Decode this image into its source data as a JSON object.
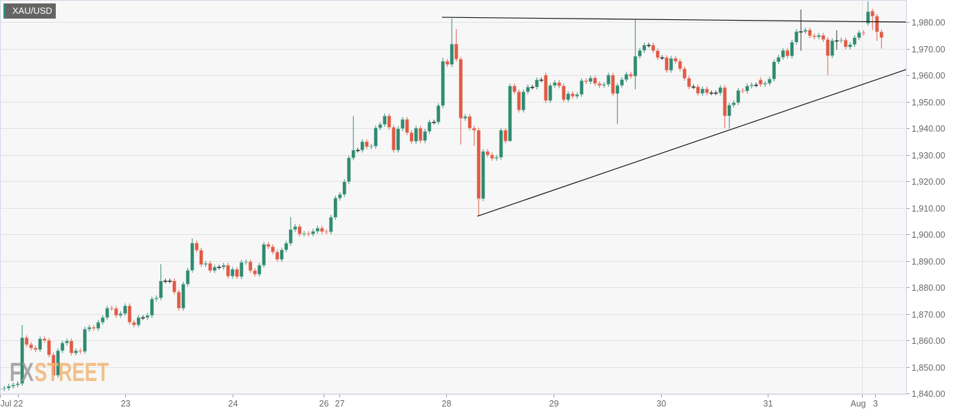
{
  "chart_data": {
    "type": "candlestick",
    "title": "XAU/USD",
    "watermark": [
      "FX",
      "STREET"
    ],
    "ylim": [
      1840,
      1980
    ],
    "y_ticks": [
      1840,
      1850,
      1860,
      1870,
      1880,
      1890,
      1900,
      1910,
      1920,
      1930,
      1940,
      1950,
      1960,
      1970,
      1980
    ],
    "y_tick_labels": [
      "1,840.00",
      "1,850.00",
      "1,860.00",
      "1,870.00",
      "1,880.00",
      "1,890.00",
      "1,900.00",
      "1,910.00",
      "1,920.00",
      "1,930.00",
      "1,940.00",
      "1,950.00",
      "1,960.00",
      "1,970.00",
      "1,980.00"
    ],
    "x_ticks": [
      {
        "index": 0.05,
        "label": "Jul"
      },
      {
        "index": 4.05,
        "label": "22"
      },
      {
        "index": 28.0,
        "label": "23"
      },
      {
        "index": 52.0,
        "label": "24"
      },
      {
        "index": 72.3,
        "label": "26"
      },
      {
        "index": 75.9,
        "label": "27"
      },
      {
        "index": 99.7,
        "label": "28"
      },
      {
        "index": 123.7,
        "label": "29"
      },
      {
        "index": 147.7,
        "label": "30"
      },
      {
        "index": 171.6,
        "label": "31"
      },
      {
        "index": 192.7,
        "label": "Aug"
      },
      {
        "index": 195.6,
        "label": "3"
      }
    ],
    "month_start_index": 192.7,
    "grid": true,
    "colors": {
      "up": "#2f8a72",
      "down": "#e05a45",
      "flat": "#333333"
    },
    "close": [
      1841.8,
      1842,
      1842.7,
      1843.2,
      1843.7,
      1861,
      1858.4,
      1857.1,
      1856.5,
      1860.6,
      1860,
      1854.5,
      1846.8,
      1856.1,
      1859,
      1859.8,
      1855.2,
      1856.1,
      1855.8,
      1864.2,
      1864.9,
      1864.5,
      1866.8,
      1868.6,
      1872.1,
      1872,
      1869.4,
      1870.1,
      1873,
      1866.8,
      1865.8,
      1868.6,
      1868.6,
      1869.4,
      1875.6,
      1876,
      1882.4,
      1882.4,
      1882.4,
      1878.2,
      1872.1,
      1881.2,
      1886.4,
      1896.7,
      1894,
      1888.6,
      1889,
      1886.3,
      1887.6,
      1887.6,
      1888.3,
      1884.2,
      1886.8,
      1884,
      1889.4,
      1889.6,
      1886.3,
      1884.9,
      1888.3,
      1896.2,
      1895.3,
      1893.3,
      1890.5,
      1894.1,
      1896.6,
      1901.8,
      1902.9,
      1900.1,
      1900.3,
      1900.1,
      1901.1,
      1902.3,
      1901,
      1900.9,
      1906.4,
      1913.6,
      1915,
      1919.8,
      1928.8,
      1931.7,
      1931.7,
      1934.9,
      1933,
      1933.2,
      1940.1,
      1941.4,
      1944.6,
      1940.3,
      1931.7,
      1939.8,
      1943.3,
      1938.3,
      1935,
      1940,
      1935.3,
      1938.8,
      1942.3,
      1942.3,
      1948.5,
      1965.2,
      1964,
      1971.7,
      1966,
      1943.7,
      1944.4,
      1940,
      1939.2,
      1913.4,
      1931.2,
      1929.9,
      1928.6,
      1929,
      1939.2,
      1935.1,
      1955.9,
      1953.7,
      1946.8,
      1953.7,
      1955.5,
      1955.5,
      1958.2,
      1958.2,
      1950.4,
      1956.1,
      1957.2,
      1955.9,
      1950.7,
      1953,
      1952,
      1952.7,
      1957.9,
      1957.5,
      1958.9,
      1956.8,
      1956.1,
      1956.5,
      1960,
      1953,
      1956.1,
      1958.3,
      1960.3,
      1959.6,
      1967.1,
      1969.3,
      1971.3,
      1971.3,
      1969.2,
      1966.6,
      1966.6,
      1961.8,
      1966.3,
      1965.2,
      1962.4,
      1958.8,
      1955.6,
      1955.6,
      1953.1,
      1954.8,
      1953.3,
      1953.3,
      1953.3,
      1955.3,
      1944.6,
      1948.7,
      1949.6,
      1954.2,
      1954,
      1955.9,
      1956.3,
      1956.3,
      1956.5,
      1956.9,
      1958.5,
      1965,
      1966.7,
      1969.3,
      1967.2,
      1972.4,
      1976.4,
      1976.4,
      1977,
      1974.8,
      1974.4,
      1975,
      1973.4,
      1967.3,
      1973,
      1973,
      1973.2,
      1970.6,
      1971.5,
      1974.1,
      1976,
      1975.8,
      1983.9,
      1982.2,
      1976.3,
      1974.1
    ],
    "first_open": 1841.6,
    "open_overrides": {
      "122": 1960,
      "170": 1958.2,
      "194": 1979.5,
      "195": 1984.1
    },
    "wick_overrides": {
      "5": [
        1865.8,
        null
      ],
      "12": [
        null,
        1844.8
      ],
      "36": [
        1888.7,
        null
      ],
      "43": [
        1898.4,
        null
      ],
      "65": [
        1906.5,
        null
      ],
      "79": [
        1944.6,
        null
      ],
      "99": [
        1966.5,
        null
      ],
      "101": [
        1981.3,
        1963
      ],
      "102": [
        1977.4,
        null
      ],
      "103": [
        null,
        1933.8
      ],
      "106": [
        null,
        1933.3
      ],
      "107": [
        null,
        1906.9
      ],
      "114": [
        null,
        1935
      ],
      "138": [
        null,
        1941.6
      ],
      "142": [
        1980.9,
        1954.6
      ],
      "162": [
        null,
        1940
      ],
      "163": [
        null,
        1939.8
      ],
      "179": [
        1984.7,
        1969.2
      ],
      "185": [
        null,
        1960
      ],
      "187": [
        1976.9,
        1969.5
      ],
      "194": [
        1987.8,
        null
      ],
      "195": [
        null,
        1977
      ],
      "196": [
        null,
        1972.9
      ],
      "197": [
        null,
        1970
      ]
    },
    "trendlines": [
      {
        "name": "resistance",
        "from": [
          98.8,
          1981.8
        ],
        "to": [
          202.5,
          1980.0
        ]
      },
      {
        "name": "support",
        "from": [
          106.7,
          1906.8
        ],
        "to": [
          202.5,
          1962.1
        ]
      }
    ]
  }
}
